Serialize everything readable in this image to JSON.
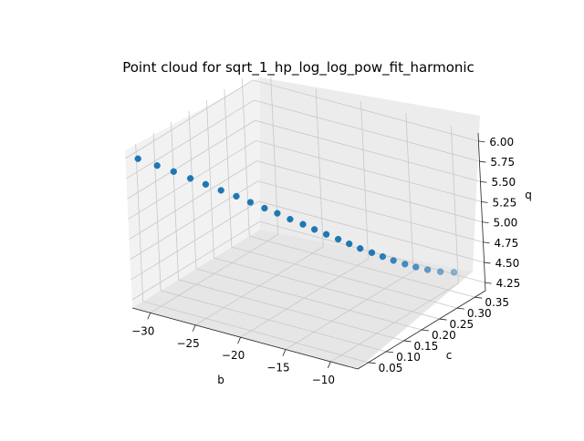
{
  "chart_data": {
    "type": "scatter",
    "projection": "3d",
    "title": "Point cloud for sqrt_1_hp_log_log_pow_fit_harmonic",
    "xlabel": "b",
    "ylabel": "c",
    "zlabel": "q",
    "x_ticks": [
      "−30",
      "−25",
      "−20",
      "−15",
      "−10"
    ],
    "y_ticks": [
      "0.05",
      "0.10",
      "0.15",
      "0.20",
      "0.25",
      "0.30",
      "0.35"
    ],
    "z_ticks": [
      "4.25",
      "4.50",
      "4.75",
      "5.00",
      "5.25",
      "5.50",
      "5.75",
      "6.00"
    ],
    "xlim": [
      -32,
      -7
    ],
    "ylim": [
      0.02,
      0.38
    ],
    "zlim": [
      4.15,
      6.1
    ],
    "grid": true,
    "marker_color": "#1f77b4",
    "points": [
      {
        "b": -31.0,
        "c": 0.03,
        "q": 6.0
      },
      {
        "b": -29.5,
        "c": 0.045,
        "q": 5.92
      },
      {
        "b": -28.2,
        "c": 0.058,
        "q": 5.85
      },
      {
        "b": -26.9,
        "c": 0.071,
        "q": 5.77
      },
      {
        "b": -25.7,
        "c": 0.083,
        "q": 5.7
      },
      {
        "b": -24.5,
        "c": 0.095,
        "q": 5.63
      },
      {
        "b": -23.3,
        "c": 0.107,
        "q": 5.56
      },
      {
        "b": -22.2,
        "c": 0.118,
        "q": 5.49
      },
      {
        "b": -21.1,
        "c": 0.129,
        "q": 5.42
      },
      {
        "b": -20.1,
        "c": 0.139,
        "q": 5.36
      },
      {
        "b": -19.1,
        "c": 0.149,
        "q": 5.29
      },
      {
        "b": -18.1,
        "c": 0.159,
        "q": 5.23
      },
      {
        "b": -17.2,
        "c": 0.168,
        "q": 5.17
      },
      {
        "b": -16.3,
        "c": 0.178,
        "q": 5.11
      },
      {
        "b": -15.4,
        "c": 0.188,
        "q": 5.05
      },
      {
        "b": -14.6,
        "c": 0.198,
        "q": 4.99
      },
      {
        "b": -13.8,
        "c": 0.208,
        "q": 4.93
      },
      {
        "b": -13.0,
        "c": 0.22,
        "q": 4.87
      },
      {
        "b": -12.3,
        "c": 0.232,
        "q": 4.81
      },
      {
        "b": -11.6,
        "c": 0.244,
        "q": 4.75
      },
      {
        "b": -10.9,
        "c": 0.258,
        "q": 4.69
      },
      {
        "b": -10.3,
        "c": 0.273,
        "q": 4.63
      },
      {
        "b": -9.7,
        "c": 0.29,
        "q": 4.57
      },
      {
        "b": -9.1,
        "c": 0.31,
        "q": 4.51
      },
      {
        "b": -8.6,
        "c": 0.335,
        "q": 4.45
      }
    ]
  }
}
